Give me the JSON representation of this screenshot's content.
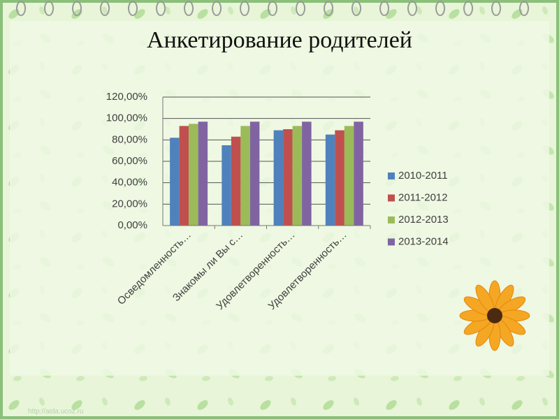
{
  "title": "Анкетирование родителей",
  "watermark": "http://aida.ucoz.ru",
  "chart_data": {
    "type": "bar",
    "categories": [
      "Осведомленность…",
      "Знакомы ли Вы с…",
      "Удовлетворенность…",
      "Удовлетворенность…"
    ],
    "series": [
      {
        "name": "2010-2011",
        "color": "#4f81bd",
        "values": [
          82,
          75,
          89,
          85
        ]
      },
      {
        "name": "2011-2012",
        "color": "#c0504d",
        "values": [
          93,
          83,
          90,
          89
        ]
      },
      {
        "name": "2012-2013",
        "color": "#9bbb59",
        "values": [
          95,
          93,
          93,
          93
        ]
      },
      {
        "name": "2013-2014",
        "color": "#8064a2",
        "values": [
          97,
          97,
          97,
          97
        ]
      }
    ],
    "ylim": [
      0,
      120
    ],
    "yticks": [
      {
        "value": 0,
        "label": "0,00%"
      },
      {
        "value": 20,
        "label": "20,00%"
      },
      {
        "value": 40,
        "label": "40,00%"
      },
      {
        "value": 60,
        "label": "60,00%"
      },
      {
        "value": 80,
        "label": "80,00%"
      },
      {
        "value": 100,
        "label": "100,00%"
      },
      {
        "value": 120,
        "label": "120,00%"
      }
    ],
    "grid": true,
    "legend": "right"
  }
}
